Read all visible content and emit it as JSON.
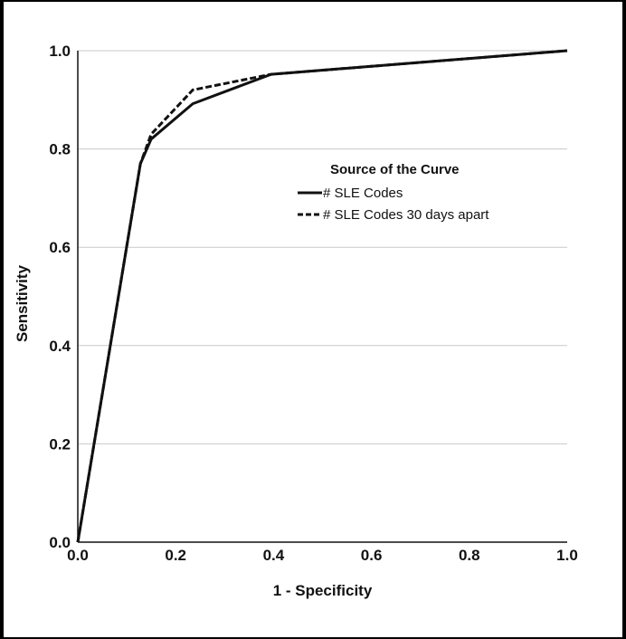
{
  "chart_data": {
    "type": "line",
    "xlabel": "1 - Specificity",
    "ylabel": "Sensitivity",
    "xlim": [
      0,
      1
    ],
    "ylim": [
      0,
      1
    ],
    "x_ticks": [
      "0.0",
      "0.2",
      "0.4",
      "0.6",
      "0.8",
      "1.0"
    ],
    "y_ticks": [
      "0.0",
      "0.2",
      "0.4",
      "0.6",
      "0.8",
      "1.0"
    ],
    "grid": "horizontal",
    "legend": {
      "title": "Source of the Curve",
      "position": "center-right"
    },
    "series": [
      {
        "name": "# SLE Codes",
        "style": "solid",
        "points": [
          [
            0,
            0
          ],
          [
            0.128,
            0.77
          ],
          [
            0.15,
            0.82
          ],
          [
            0.235,
            0.892
          ],
          [
            0.395,
            0.952
          ],
          [
            1.0,
            1.0
          ]
        ]
      },
      {
        "name": "# SLE Codes 30 days apart",
        "style": "dashed",
        "points": [
          [
            0,
            0
          ],
          [
            0.128,
            0.77
          ],
          [
            0.15,
            0.83
          ],
          [
            0.235,
            0.92
          ],
          [
            0.395,
            0.952
          ],
          [
            1.0,
            1.0
          ]
        ]
      }
    ]
  }
}
